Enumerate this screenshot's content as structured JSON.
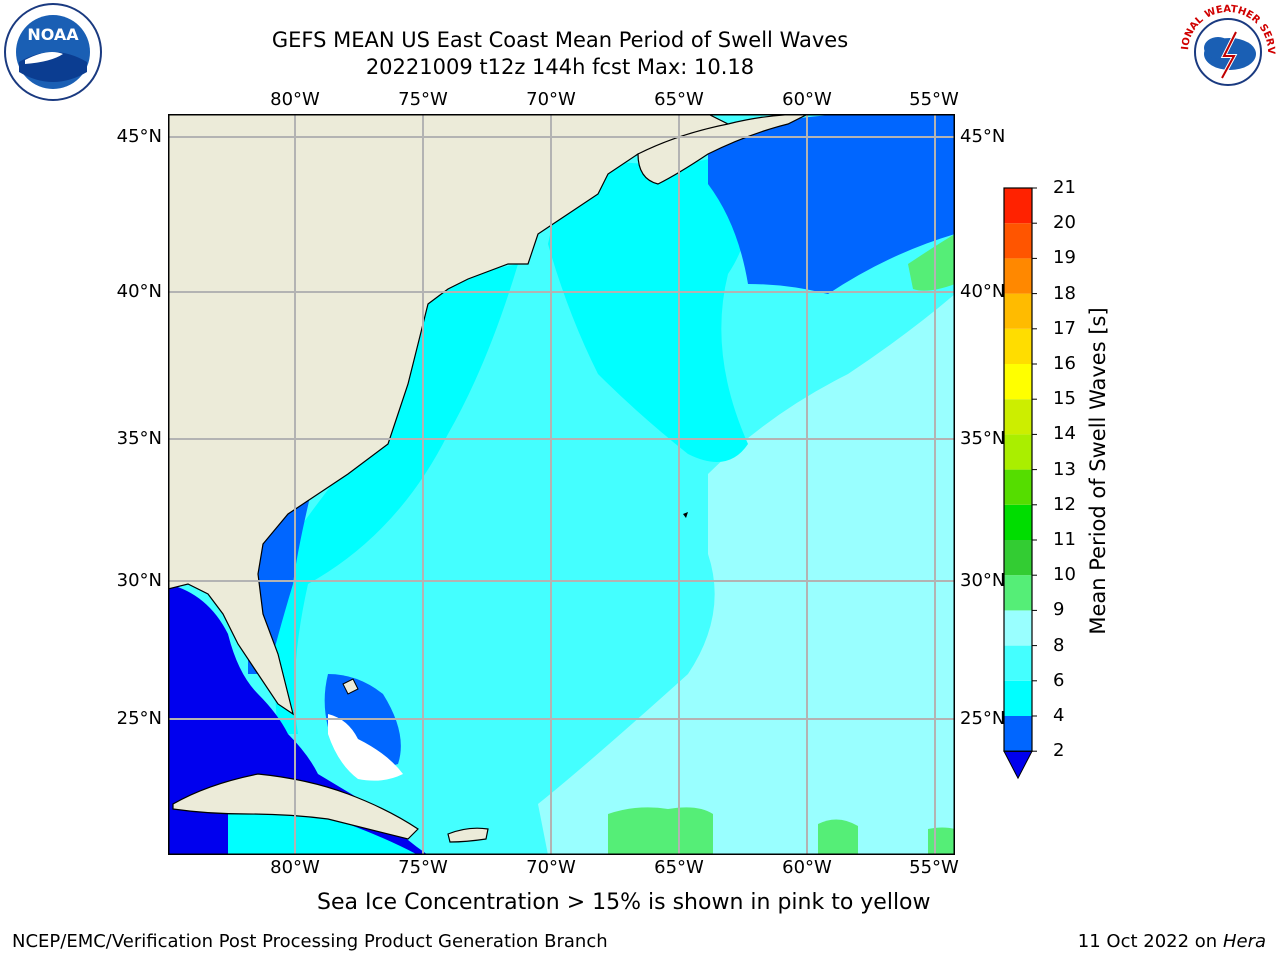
{
  "header": {
    "title_line1": "GEFS MEAN US East Coast Mean Period of Swell Waves",
    "title_line2": "20221009 t12z 144h fcst   Max: 10.18"
  },
  "logos": {
    "noaa_text": "NOAA",
    "nws_text": "NATIONAL WEATHER SERVICE"
  },
  "map": {
    "lon_labels": [
      "80°W",
      "75°W",
      "70°W",
      "65°W",
      "60°W",
      "55°W"
    ],
    "lat_labels": [
      "45°N",
      "40°N",
      "35°N",
      "30°N",
      "25°N"
    ],
    "colors": {
      "land": "#ecebd9",
      "grid": "#b3b3b3",
      "swell_0_2": "#0000ee",
      "swell_2_4": "#0066ff",
      "swell_4_6": "#00ffff",
      "swell_6_8": "#44ffff",
      "swell_8_9": "#99ffff",
      "swell_9_10": "#55ee77"
    }
  },
  "colorbar": {
    "title": "Mean Period of Swell Waves [s]",
    "ticks": [
      "2",
      "4",
      "6",
      "8",
      "9",
      "10",
      "11",
      "12",
      "13",
      "14",
      "15",
      "16",
      "17",
      "18",
      "19",
      "20",
      "21"
    ],
    "colors": [
      "#0066ff",
      "#00ffff",
      "#44ffff",
      "#99ffff",
      "#55ee77",
      "#33cc33",
      "#00dd00",
      "#55dd00",
      "#aaee00",
      "#ccee00",
      "#ffff00",
      "#ffdd00",
      "#ffbb00",
      "#ff8800",
      "#ff5500",
      "#ff2200"
    ],
    "under_color": "#0000ee"
  },
  "footer": {
    "note": "Sea Ice Concentration > 15% is shown in pink to yellow",
    "credit": "NCEP/EMC/Verification Post Processing Product Generation Branch",
    "date_text": "11 Oct 2022 on ",
    "machine": "Hera"
  }
}
